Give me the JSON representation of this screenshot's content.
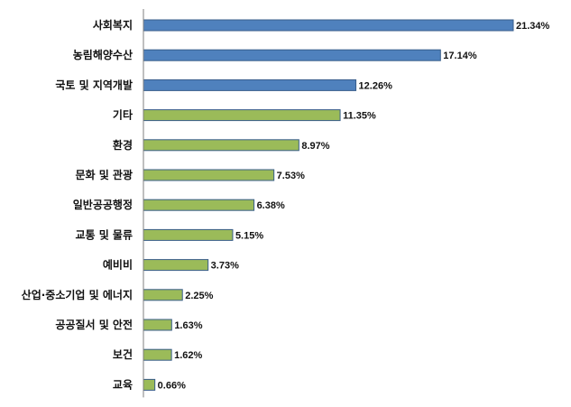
{
  "chart_data": {
    "type": "bar",
    "orientation": "horizontal",
    "title": "",
    "xlabel": "",
    "ylabel": "",
    "xlim": [
      0,
      23
    ],
    "grid": false,
    "legend": "none",
    "unit": "%",
    "categories": [
      "사회복지",
      "농림해양수산",
      "국토 및 지역개발",
      "기타",
      "환경",
      "문화 및 관광",
      "일반공공행정",
      "교통 및 물류",
      "예비비",
      "산업·중소기업 및 에너지",
      "공공질서 및 안전",
      "보건",
      "교육"
    ],
    "values": [
      21.34,
      17.14,
      12.26,
      11.35,
      8.97,
      7.53,
      6.38,
      5.15,
      3.73,
      2.25,
      1.63,
      1.62,
      0.66
    ],
    "value_labels": [
      "21.34%",
      "17.14%",
      "12.26%",
      "11.35%",
      "8.97%",
      "7.53%",
      "6.38%",
      "5.15%",
      "3.73%",
      "2.25%",
      "1.63%",
      "1.62%",
      "0.66%"
    ],
    "bar_colors": [
      "#4F81BD",
      "#4F81BD",
      "#4F81BD",
      "#9BBB59",
      "#9BBB59",
      "#9BBB59",
      "#9BBB59",
      "#9BBB59",
      "#9BBB59",
      "#9BBB59",
      "#9BBB59",
      "#9BBB59",
      "#9BBB59"
    ],
    "bar_border_color": "#385D8A",
    "axis_color": "#7F7F7F"
  }
}
